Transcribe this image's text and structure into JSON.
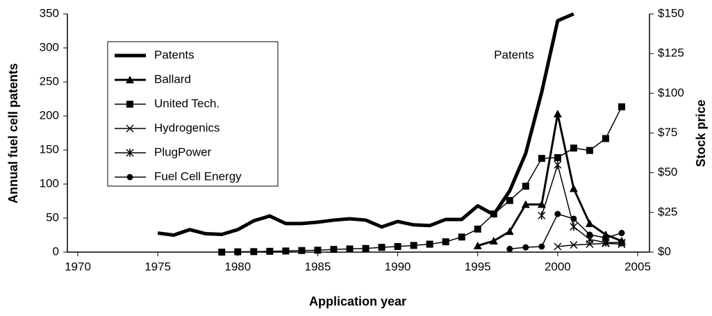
{
  "chart_data": {
    "type": "line",
    "xlabel": "Application year",
    "ylabel": "Annual fuel cell patents",
    "y2label": "Stock price",
    "annotations": [
      "Patents"
    ],
    "xlim": [
      1970,
      2005
    ],
    "xticks": [
      1970,
      1975,
      1980,
      1985,
      1990,
      1995,
      2000,
      2005
    ],
    "ylim": [
      0,
      350
    ],
    "yticks": [
      0,
      50,
      100,
      150,
      200,
      250,
      300,
      350
    ],
    "y2lim": [
      0,
      150
    ],
    "y2ticks": [
      {
        "value": 0,
        "label": "$0"
      },
      {
        "value": 25,
        "label": "$25"
      },
      {
        "value": 50,
        "label": "$50"
      },
      {
        "value": 75,
        "label": "$75"
      },
      {
        "value": 100,
        "label": "$100"
      },
      {
        "value": 125,
        "label": "$125"
      },
      {
        "value": 150,
        "label": "$150"
      }
    ],
    "legend": "upper left",
    "series": [
      {
        "name": "Patents",
        "color": "#000000",
        "marker": "none",
        "axis": "y",
        "x": [
          1975,
          1976,
          1977,
          1978,
          1979,
          1980,
          1981,
          1982,
          1983,
          1984,
          1985,
          1986,
          1987,
          1988,
          1989,
          1990,
          1991,
          1992,
          1993,
          1994,
          1995,
          1996,
          1997,
          1998,
          1999,
          2000,
          2001
        ],
        "values": [
          28,
          25,
          33,
          27,
          26,
          33,
          46,
          53,
          42,
          42,
          44,
          47,
          49,
          47,
          37,
          45,
          40,
          39,
          48,
          48,
          68,
          55,
          90,
          145,
          235,
          340,
          350
        ]
      },
      {
        "name": "Ballard",
        "color": "#000000",
        "marker": "triangle",
        "axis": "y2",
        "x": [
          1995,
          1996,
          1997,
          1998,
          1999,
          2000,
          2001,
          2002,
          2003,
          2004
        ],
        "values": [
          4,
          7,
          13,
          30,
          30,
          87,
          40,
          18,
          11,
          7
        ]
      },
      {
        "name": "United Tech.",
        "color": "#000000",
        "marker": "square",
        "axis": "y2",
        "x": [
          1979,
          1980,
          1981,
          1982,
          1983,
          1984,
          1985,
          1986,
          1987,
          1988,
          1989,
          1990,
          1991,
          1992,
          1993,
          1994,
          1995,
          1996,
          1997,
          1998,
          1999,
          2000,
          2001,
          2002,
          2003,
          2004
        ],
        "values": [
          0,
          0.2,
          0.3,
          0.5,
          0.7,
          1,
          1.2,
          1.7,
          2,
          2.3,
          3,
          3.5,
          4.2,
          5,
          6.5,
          9.5,
          14.5,
          24,
          32.5,
          41.5,
          59,
          59.5,
          65.5,
          64,
          71.5,
          91.5
        ]
      },
      {
        "name": "Hydrogenics",
        "color": "#000000",
        "marker": "x",
        "axis": "y2",
        "x": [
          2000,
          2001,
          2002,
          2003,
          2004
        ],
        "values": [
          3.5,
          4.5,
          5,
          5.5,
          5
        ]
      },
      {
        "name": "PlugPower",
        "color": "#000000",
        "marker": "star",
        "axis": "y2",
        "x": [
          1999,
          2000,
          2001,
          2002,
          2003,
          2004
        ],
        "values": [
          23,
          55,
          16,
          8,
          6,
          6
        ]
      },
      {
        "name": "Fuel Cell Energy",
        "color": "#000000",
        "marker": "circle",
        "axis": "y2",
        "x": [
          1997,
          1998,
          1999,
          2000,
          2001,
          2002,
          2003,
          2004
        ],
        "values": [
          2,
          3,
          3.5,
          24,
          21,
          11,
          9,
          12
        ]
      }
    ]
  }
}
